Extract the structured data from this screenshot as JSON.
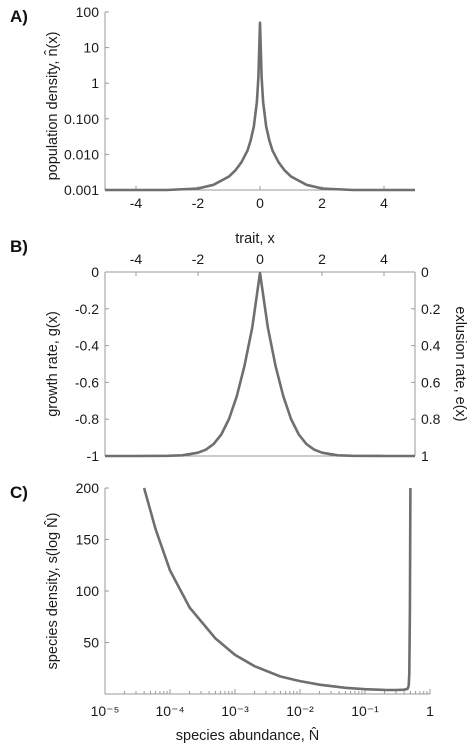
{
  "colors": {
    "curve": "#6f6f6f",
    "axis": "#9a9a9a",
    "text": "#1a1a1a"
  },
  "chart_data": [
    {
      "panel": "A)",
      "type": "line",
      "xlabel": "trait, x",
      "ylabel": "population density, n̂(x)",
      "xlim": [
        -5,
        5
      ],
      "ylim": [
        0.001,
        100
      ],
      "yscale": "log",
      "xticks": [
        "-4",
        "-2",
        "0",
        "2",
        "4"
      ],
      "yticks": [
        "0.001",
        "0.010",
        "0.100",
        "1",
        "10",
        "100"
      ],
      "series": [
        {
          "x": [
            -5,
            -4,
            -3,
            -2,
            -1.5,
            -1,
            -0.8,
            -0.6,
            -0.4,
            -0.3,
            -0.2,
            -0.1,
            -0.05,
            0,
            0.05,
            0.1,
            0.2,
            0.3,
            0.4,
            0.6,
            0.8,
            1,
            1.5,
            2,
            3,
            4,
            5
          ],
          "y": [
            0.001,
            0.001,
            0.001,
            0.0011,
            0.0014,
            0.0024,
            0.0035,
            0.006,
            0.013,
            0.025,
            0.06,
            0.3,
            1.5,
            50,
            1.5,
            0.3,
            0.06,
            0.025,
            0.013,
            0.006,
            0.0035,
            0.0024,
            0.0014,
            0.0011,
            0.001,
            0.001,
            0.001
          ]
        }
      ]
    },
    {
      "panel": "B)",
      "type": "line",
      "ylabel": "growth rate, g(x)",
      "y2label": "exlusion rate, e(x)",
      "xlim": [
        -5,
        5
      ],
      "ylim": [
        -1,
        0
      ],
      "xticks": [
        "-4",
        "-2",
        "0",
        "2",
        "4"
      ],
      "yticks": [
        "-1",
        "-0.8",
        "-0.6",
        "-0.4",
        "-0.2",
        "0"
      ],
      "y2ticks": [
        "1",
        "0.8",
        "0.6",
        "0.4",
        "0.2",
        "0"
      ],
      "series": [
        {
          "x": [
            -5,
            -4,
            -3,
            -2.5,
            -2,
            -1.75,
            -1.5,
            -1.25,
            -1,
            -0.75,
            -0.5,
            -0.25,
            0,
            0.25,
            0.5,
            0.75,
            1,
            1.25,
            1.5,
            1.75,
            2,
            2.5,
            3,
            4,
            5
          ],
          "y": [
            -1,
            -1,
            -0.999,
            -0.996,
            -0.982,
            -0.966,
            -0.936,
            -0.883,
            -0.799,
            -0.675,
            -0.51,
            -0.3,
            -0.005,
            -0.3,
            -0.51,
            -0.675,
            -0.799,
            -0.883,
            -0.936,
            -0.966,
            -0.982,
            -0.996,
            -0.999,
            -1,
            -1
          ]
        }
      ]
    },
    {
      "panel": "C)",
      "type": "line",
      "xlabel": "species abundance, N̂",
      "ylabel": "species density, s(log N̂)",
      "xscale": "log",
      "xlim": [
        1e-05,
        1
      ],
      "ylim": [
        0,
        200
      ],
      "xticks": [
        "10⁻⁵",
        "10⁻⁴",
        "10⁻³",
        "10⁻²",
        "10⁻¹",
        "1"
      ],
      "yticks": [
        "50",
        "100",
        "150",
        "200"
      ],
      "series": [
        {
          "x": [
            4e-05,
            6e-05,
            0.0001,
            0.0002,
            0.0005,
            0.001,
            0.002,
            0.005,
            0.01,
            0.02,
            0.05,
            0.1,
            0.2,
            0.3,
            0.4,
            0.45,
            0.47,
            0.48,
            0.49,
            0.5
          ],
          "y": [
            200,
            160,
            120,
            84,
            54,
            38,
            27,
            17,
            12.5,
            9,
            6,
            4.7,
            4,
            3.9,
            4.2,
            5,
            8,
            20,
            80,
            200
          ]
        }
      ]
    }
  ]
}
